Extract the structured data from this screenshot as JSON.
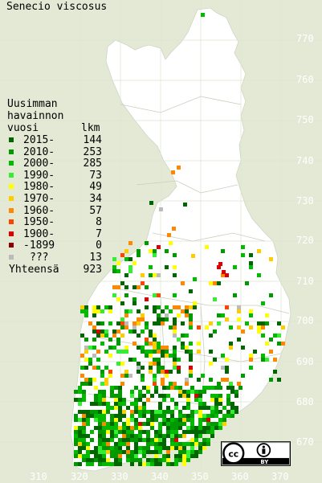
{
  "title": "Senecio viscosus",
  "legend": {
    "header_line1": "Uusimman",
    "header_line2": "havainnon",
    "header_line3": "vuosi",
    "count_header": "lkm",
    "items": [
      {
        "label": "2015-",
        "count": "144",
        "color": "#006600"
      },
      {
        "label": "2010-",
        "count": "253",
        "color": "#009900"
      },
      {
        "label": "2000-",
        "count": "285",
        "color": "#00bb00"
      },
      {
        "label": "1990-",
        "count": "73",
        "color": "#33ee33"
      },
      {
        "label": "1980-",
        "count": "49",
        "color": "#ffff00"
      },
      {
        "label": "1970-",
        "count": "34",
        "color": "#ffcc00"
      },
      {
        "label": "1960-",
        "count": "57",
        "color": "#ff8800"
      },
      {
        "label": "1950-",
        "count": "8",
        "color": "#ff4400"
      },
      {
        "label": "1900-",
        "count": "7",
        "color": "#dd0000"
      },
      {
        "label": "-1899",
        "count": "0",
        "color": "#880000"
      },
      {
        "label": "???",
        "count": "13",
        "color": "#bbbbbb"
      }
    ],
    "total_label": "Yhteensä",
    "total_count": "923"
  },
  "axis": {
    "y_ticks": [
      "770",
      "760",
      "750",
      "740",
      "730",
      "720",
      "710",
      "700",
      "690",
      "680",
      "670"
    ],
    "x_ticks": [
      "310",
      "320",
      "330",
      "340",
      "350",
      "360",
      "370"
    ]
  },
  "license": {
    "cc": "cc",
    "by": "BY",
    "icon": "creative-commons-by-icon"
  },
  "colors": {
    "background": "#e3e9d5",
    "land": "#ffffff",
    "grid": "#d2dac2",
    "border": "#c8cdc0"
  }
}
